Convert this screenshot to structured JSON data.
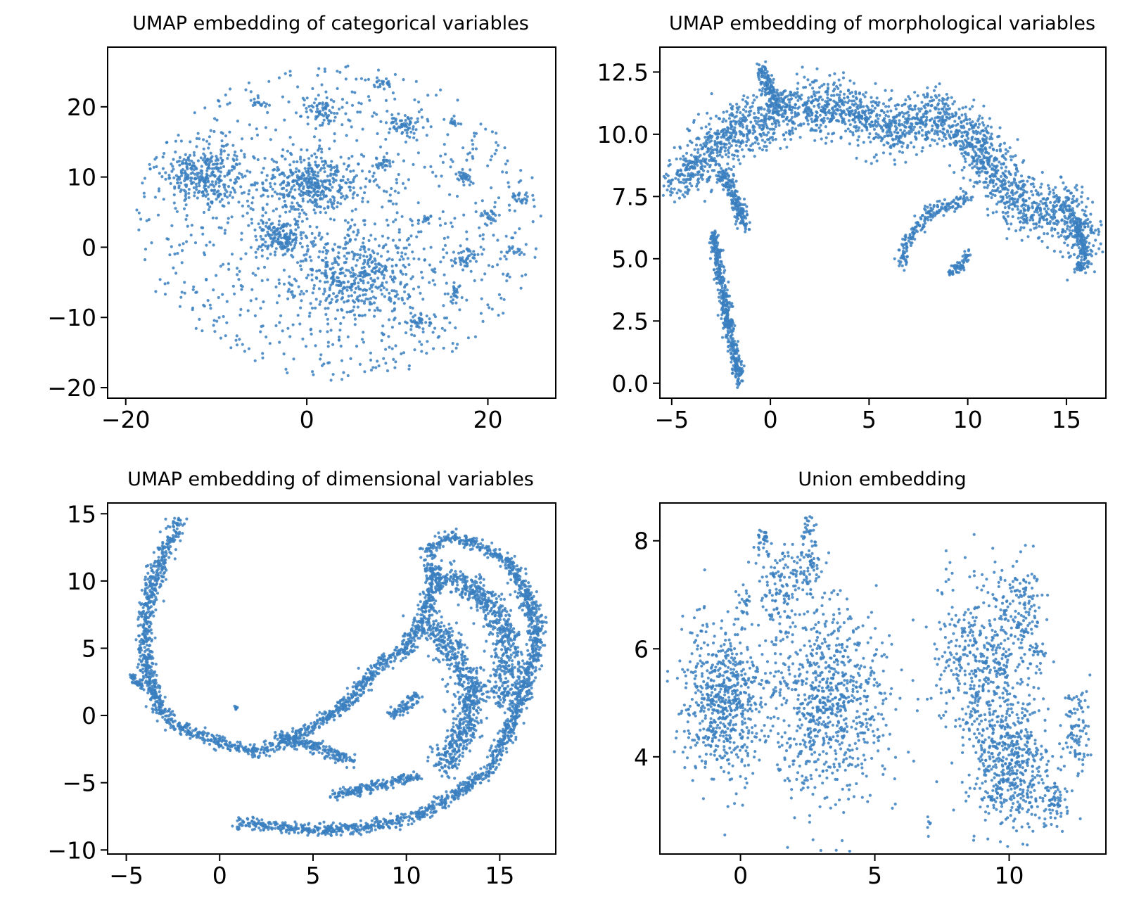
{
  "chart_data": [
    {
      "type": "scatter",
      "title": "UMAP embedding of categorical variables",
      "xlim": [
        -22,
        27.5
      ],
      "ylim": [
        -21.5,
        28.5
      ],
      "xticks": [
        {
          "value": -20,
          "label": "−20"
        },
        {
          "value": 0,
          "label": "0"
        },
        {
          "value": 20,
          "label": "20"
        }
      ],
      "yticks": [
        {
          "value": -20,
          "label": "−20"
        },
        {
          "value": -10,
          "label": "−10"
        },
        {
          "value": 0,
          "label": "0"
        },
        {
          "value": 10,
          "label": "10"
        },
        {
          "value": 20,
          "label": "20"
        }
      ],
      "point_color": "#3a7fbf",
      "grid": false,
      "clusters": [
        {
          "cx": -11.5,
          "cy": 10,
          "sx": 2.2,
          "sy": 2.0,
          "n": 320
        },
        {
          "cx": 0.5,
          "cy": 9,
          "sx": 2.8,
          "sy": 2.0,
          "n": 380
        },
        {
          "cx": -2.5,
          "cy": 1.5,
          "sx": 1.6,
          "sy": 1.4,
          "n": 180
        },
        {
          "cx": 5.5,
          "cy": -4,
          "sx": 3.2,
          "sy": 3.0,
          "n": 420
        },
        {
          "cx": 1.5,
          "cy": 19.5,
          "sx": 0.8,
          "sy": 1.0,
          "n": 60
        },
        {
          "cx": 10.5,
          "cy": 17.5,
          "sx": 0.8,
          "sy": 1.0,
          "n": 55
        },
        {
          "cx": 8.5,
          "cy": 12,
          "sx": 0.5,
          "sy": 0.4,
          "n": 25
        },
        {
          "cx": 17.5,
          "cy": 10,
          "sx": 0.5,
          "sy": 0.6,
          "n": 30
        },
        {
          "cx": 17.5,
          "cy": -1.5,
          "sx": 0.9,
          "sy": 0.8,
          "n": 45
        },
        {
          "cx": 16.5,
          "cy": -6.5,
          "sx": 0.4,
          "sy": 0.7,
          "n": 25
        },
        {
          "cx": 12.5,
          "cy": -10.5,
          "sx": 0.8,
          "sy": 0.6,
          "n": 40
        },
        {
          "cx": 20,
          "cy": 4.5,
          "sx": 0.5,
          "sy": 0.6,
          "n": 25
        },
        {
          "cx": 23.5,
          "cy": 7,
          "sx": 0.6,
          "sy": 0.5,
          "n": 25
        },
        {
          "cx": 8.5,
          "cy": 23.5,
          "sx": 0.5,
          "sy": 0.4,
          "n": 20
        },
        {
          "cx": -5.5,
          "cy": 20.5,
          "sx": 0.5,
          "sy": 0.3,
          "n": 15
        },
        {
          "cx": 13,
          "cy": 4,
          "sx": 0.6,
          "sy": 0.3,
          "n": 15
        },
        {
          "cx": 16,
          "cy": 18,
          "sx": 0.3,
          "sy": 0.4,
          "n": 12
        },
        {
          "cx": 23,
          "cy": -0.5,
          "sx": 0.5,
          "sy": 0.3,
          "n": 12
        }
      ],
      "background": {
        "type": "disk",
        "cx": 3.5,
        "cy": 3.5,
        "rx": 22.5,
        "ry": 22.5,
        "n": 850
      }
    },
    {
      "type": "scatter",
      "title": "UMAP embedding of morphological variables",
      "xlim": [
        -5.6,
        17.0
      ],
      "ylim": [
        -0.6,
        13.5
      ],
      "xticks": [
        {
          "value": -5,
          "label": "−5"
        },
        {
          "value": 0,
          "label": "0"
        },
        {
          "value": 5,
          "label": "5"
        },
        {
          "value": 10,
          "label": "10"
        },
        {
          "value": 15,
          "label": "15"
        }
      ],
      "yticks": [
        {
          "value": 0,
          "label": "0.0"
        },
        {
          "value": 2.5,
          "label": "2.5"
        },
        {
          "value": 5,
          "label": "5.0"
        },
        {
          "value": 7.5,
          "label": "7.5"
        },
        {
          "value": 10,
          "label": "10.0"
        },
        {
          "value": 12.5,
          "label": "12.5"
        }
      ],
      "point_color": "#3a7fbf",
      "grid": false,
      "paths": [
        {
          "pts": [
            [
              -4.8,
              8.0
            ],
            [
              -3.5,
              9.0
            ],
            [
              -2.0,
              10.0
            ],
            [
              -0.5,
              10.5
            ],
            [
              0.5,
              11.0
            ],
            [
              2.0,
              11.0
            ],
            [
              3.5,
              11.2
            ],
            [
              5.0,
              10.6
            ],
            [
              6.5,
              10.2
            ],
            [
              8.0,
              10.8
            ],
            [
              9.5,
              10.3
            ],
            [
              11.0,
              9.0
            ],
            [
              12.0,
              7.6
            ],
            [
              13.5,
              7.0
            ],
            [
              15.0,
              7.0
            ],
            [
              16.2,
              5.3
            ]
          ],
          "spread": 1.1,
          "n": 2400
        },
        {
          "pts": [
            [
              -0.5,
              12.7
            ],
            [
              0.0,
              11.8
            ],
            [
              0.5,
              11.0
            ]
          ],
          "spread": 0.35,
          "n": 150
        },
        {
          "pts": [
            [
              -1.3,
              6.3
            ],
            [
              -1.8,
              7.5
            ],
            [
              -2.5,
              8.5
            ]
          ],
          "spread": 0.35,
          "n": 200
        },
        {
          "pts": [
            [
              -2.9,
              6.0
            ],
            [
              -2.6,
              4.5
            ],
            [
              -2.3,
              3.2
            ],
            [
              -2.0,
              1.8
            ],
            [
              -1.5,
              0.1
            ]
          ],
          "spread": 0.28,
          "n": 450
        },
        {
          "pts": [
            [
              6.6,
              4.8
            ],
            [
              7.0,
              5.8
            ],
            [
              8.0,
              6.8
            ],
            [
              10.0,
              7.5
            ]
          ],
          "spread": 0.3,
          "n": 200
        },
        {
          "pts": [
            [
              9.0,
              4.4
            ],
            [
              9.6,
              4.7
            ],
            [
              10.0,
              5.2
            ]
          ],
          "spread": 0.2,
          "n": 60
        },
        {
          "pts": [
            [
              15.5,
              6.5
            ],
            [
              16.0,
              5.0
            ],
            [
              15.6,
              4.5
            ]
          ],
          "spread": 0.22,
          "n": 120
        }
      ]
    },
    {
      "type": "scatter",
      "title": "UMAP embedding of dimensional variables",
      "xlim": [
        -6.0,
        18.0
      ],
      "ylim": [
        -10.3,
        15.8
      ],
      "xticks": [
        {
          "value": -5,
          "label": "−5"
        },
        {
          "value": 0,
          "label": "0"
        },
        {
          "value": 5,
          "label": "5"
        },
        {
          "value": 10,
          "label": "10"
        },
        {
          "value": 15,
          "label": "15"
        }
      ],
      "yticks": [
        {
          "value": -10,
          "label": "−10"
        },
        {
          "value": -5,
          "label": "−5"
        },
        {
          "value": 0,
          "label": "0"
        },
        {
          "value": 5,
          "label": "5"
        },
        {
          "value": 10,
          "label": "10"
        },
        {
          "value": 15,
          "label": "15"
        }
      ],
      "point_color": "#3a7fbf",
      "grid": false,
      "paths": [
        {
          "pts": [
            [
              -2.2,
              14.5
            ],
            [
              -2.8,
              12.5
            ],
            [
              -3.4,
              10.5
            ],
            [
              -3.9,
              8.0
            ],
            [
              -4.0,
              5.0
            ],
            [
              -3.8,
              2.5
            ],
            [
              -3.2,
              0.5
            ],
            [
              -2.0,
              -1.0
            ],
            [
              0.0,
              -2.0
            ],
            [
              2.0,
              -2.7
            ],
            [
              3.5,
              -2.0
            ],
            [
              5.0,
              -0.8
            ],
            [
              6.5,
              0.5
            ],
            [
              7.5,
              2.0
            ],
            [
              8.5,
              3.8
            ],
            [
              10.0,
              5.0
            ],
            [
              11.0,
              7.5
            ],
            [
              11.5,
              10.0
            ],
            [
              11.2,
              12.5
            ],
            [
              12.5,
              13.3
            ],
            [
              14.0,
              12.5
            ],
            [
              15.5,
              11.5
            ],
            [
              16.5,
              9.0
            ],
            [
              17.0,
              6.0
            ],
            [
              16.5,
              2.5
            ],
            [
              15.5,
              -1.0
            ],
            [
              14.5,
              -4.0
            ],
            [
              12.5,
              -6.0
            ],
            [
              10.5,
              -7.5
            ],
            [
              8.0,
              -8.3
            ],
            [
              5.0,
              -8.5
            ],
            [
              1.0,
              -8.0
            ]
          ],
          "spread": 0.45,
          "n": 3000
        },
        {
          "pts": [
            [
              11.0,
              7.0
            ],
            [
              12.5,
              5.0
            ],
            [
              13.5,
              2.0
            ],
            [
              13.0,
              -1.5
            ],
            [
              12.0,
              -4.0
            ]
          ],
          "spread": 0.9,
          "n": 700
        },
        {
          "pts": [
            [
              11.5,
              10.5
            ],
            [
              13.5,
              9.5
            ],
            [
              15.0,
              7.5
            ],
            [
              15.5,
              4.5
            ],
            [
              15.0,
              1.0
            ]
          ],
          "spread": 0.9,
          "n": 600
        },
        {
          "pts": [
            [
              3.0,
              -1.5
            ],
            [
              5.5,
              -2.5
            ],
            [
              7.0,
              -3.5
            ]
          ],
          "spread": 0.45,
          "n": 200
        },
        {
          "pts": [
            [
              9.0,
              0.0
            ],
            [
              10.0,
              0.5
            ],
            [
              10.5,
              1.5
            ]
          ],
          "spread": 0.35,
          "n": 80
        },
        {
          "pts": [
            [
              6.0,
              -6.0
            ],
            [
              8.5,
              -5.2
            ],
            [
              10.5,
              -4.5
            ]
          ],
          "spread": 0.4,
          "n": 200
        },
        {
          "pts": [
            [
              -4.8,
              3.0
            ],
            [
              -4.5,
              2.5
            ],
            [
              -4.0,
              2.0
            ]
          ],
          "spread": 0.2,
          "n": 40
        },
        {
          "pts": [
            [
              0.85,
              0.55
            ],
            [
              0.9,
              0.6
            ]
          ],
          "spread": 0.1,
          "n": 10
        }
      ]
    },
    {
      "type": "scatter",
      "title": "Union embedding",
      "xlim": [
        -3.0,
        13.6
      ],
      "ylim": [
        2.2,
        8.7
      ],
      "xticks": [
        {
          "value": 0,
          "label": "0"
        },
        {
          "value": 5,
          "label": "5"
        },
        {
          "value": 10,
          "label": "10"
        }
      ],
      "yticks": [
        {
          "value": 4,
          "label": "4"
        },
        {
          "value": 6,
          "label": "6"
        },
        {
          "value": 8,
          "label": "8"
        }
      ],
      "point_color": "#3a7fbf",
      "grid": false,
      "clusters": [
        {
          "cx": -0.6,
          "cy": 5.0,
          "sx": 0.75,
          "sy": 0.7,
          "n": 650
        },
        {
          "cx": 3.3,
          "cy": 5.0,
          "sx": 1.1,
          "sy": 0.9,
          "n": 800
        },
        {
          "cx": 1.5,
          "cy": 7.2,
          "sx": 0.4,
          "sy": 0.4,
          "n": 120
        },
        {
          "cx": 2.6,
          "cy": 7.5,
          "sx": 0.25,
          "sy": 0.3,
          "n": 60
        },
        {
          "cx": 0.8,
          "cy": 8.0,
          "sx": 0.15,
          "sy": 0.15,
          "n": 30
        },
        {
          "cx": 2.5,
          "cy": 8.2,
          "sx": 0.15,
          "sy": 0.12,
          "n": 25
        },
        {
          "cx": 0.2,
          "cy": 6.9,
          "sx": 0.12,
          "sy": 0.15,
          "n": 20
        },
        {
          "cx": 9.0,
          "cy": 5.7,
          "sx": 0.9,
          "sy": 0.8,
          "n": 500
        },
        {
          "cx": 10.1,
          "cy": 3.8,
          "sx": 0.75,
          "sy": 0.55,
          "n": 500
        },
        {
          "cx": 10.5,
          "cy": 6.7,
          "sx": 0.4,
          "sy": 0.5,
          "n": 120
        },
        {
          "cx": 11.7,
          "cy": 3.1,
          "sx": 0.2,
          "sy": 0.2,
          "n": 50
        },
        {
          "cx": 12.5,
          "cy": 4.5,
          "sx": 0.3,
          "sy": 0.45,
          "n": 90
        },
        {
          "cx": 11.0,
          "cy": 5.9,
          "sx": 0.15,
          "sy": 0.15,
          "n": 20
        },
        {
          "cx": 7.0,
          "cy": 2.75,
          "sx": 0.04,
          "sy": 0.07,
          "n": 6
        }
      ]
    }
  ]
}
